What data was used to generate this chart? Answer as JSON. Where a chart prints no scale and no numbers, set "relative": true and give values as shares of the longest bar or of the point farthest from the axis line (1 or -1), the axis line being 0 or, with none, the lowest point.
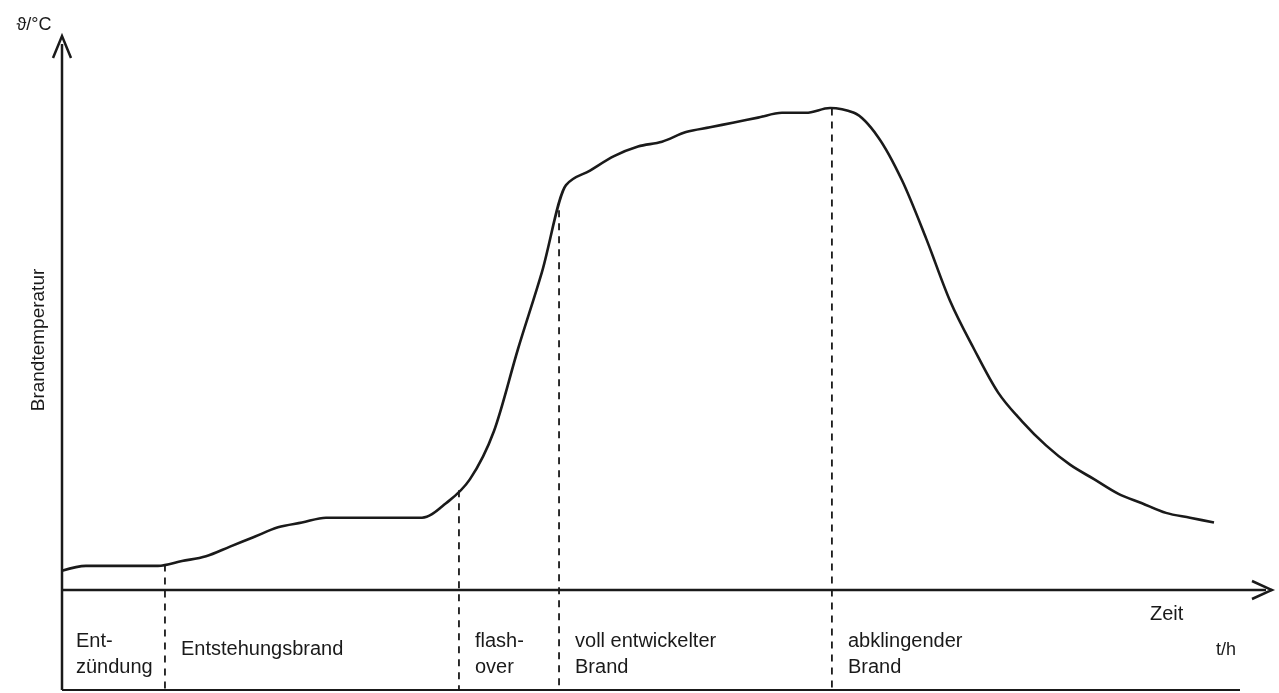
{
  "chart_data": {
    "type": "line",
    "relative": true,
    "ylabel": "Brandtemperatur",
    "xlabel": "Zeit",
    "tick_labels": false,
    "marker": "none",
    "line_style": "solid",
    "categories": [
      null,
      null,
      null,
      null,
      null,
      null,
      null,
      null,
      null,
      null,
      null,
      null,
      null,
      null,
      null,
      null,
      null,
      null,
      null,
      null,
      null,
      null,
      null,
      null,
      null,
      null,
      null,
      null,
      null,
      null,
      null,
      null,
      null,
      null,
      null,
      null,
      null,
      null,
      null,
      null,
      null,
      null,
      null,
      null,
      null,
      null,
      null,
      null,
      null
    ],
    "series": [
      {
        "color": "#1a1a1a",
        "values": [
          0.04,
          0.05,
          0.05,
          0.05,
          0.05,
          0.06,
          0.07,
          0.09,
          0.11,
          0.13,
          0.14,
          0.15,
          0.15,
          0.15,
          0.15,
          0.15,
          0.18,
          0.23,
          0.33,
          0.5,
          0.66,
          0.84,
          0.87,
          0.9,
          0.92,
          0.93,
          0.95,
          0.96,
          0.97,
          0.98,
          0.99,
          0.99,
          1,
          0.99,
          0.94,
          0.85,
          0.73,
          0.6,
          0.5,
          0.41,
          0.35,
          0.3,
          0.26,
          0.23,
          0.2,
          0.18,
          0.16,
          0.15,
          0.14
        ]
      }
    ],
    "annotations": [
      "Ent-\nzündung",
      "Entstehungsbrand",
      "flash-\nover",
      "voll entwickelter\nBrand",
      "abklingender\nBrand",
      "ϑ/°C",
      "t/h"
    ]
  }
}
